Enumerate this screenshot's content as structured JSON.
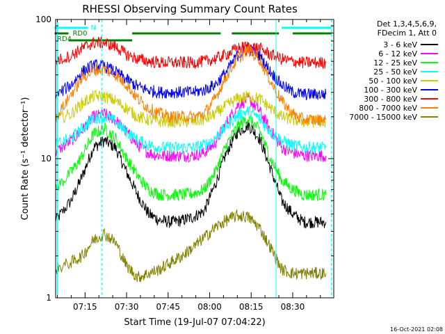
{
  "chart_data": {
    "type": "line",
    "title": "RHESSI Observing Summary Count Rates",
    "xlabel": "Start Time (19-Jul-07 07:04:22)",
    "ylabel": "Count Rate (s⁻¹ detector⁻¹)",
    "y_scale": "log",
    "ylim": [
      1,
      100
    ],
    "xlim": [
      "07:04:22",
      "08:44:50"
    ],
    "x_ticks": [
      "07:15",
      "07:30",
      "07:45",
      "08:00",
      "08:15",
      "08:30"
    ],
    "y_ticks": [
      "1",
      "10",
      "100"
    ],
    "legend_header": [
      "Det 1,3,4,5,6,9,",
      "FDecim 1, Att 0"
    ],
    "legend_placement": "right",
    "timestamp": "16-Oct-2021 02:08",
    "series": [
      {
        "name": "3 - 6 keV",
        "color": "#000000",
        "x": [
          "07:04",
          "07:10",
          "07:14",
          "07:18",
          "07:22",
          "07:26",
          "07:30",
          "07:34",
          "07:38",
          "07:42",
          "07:46",
          "07:50",
          "07:54",
          "07:58",
          "08:02",
          "08:06",
          "08:10",
          "08:14",
          "08:18",
          "08:22",
          "08:26",
          "08:30",
          "08:34",
          "08:38",
          "08:42"
        ],
        "y": [
          3.5,
          5,
          7.5,
          12,
          13.5,
          12,
          8,
          5.5,
          4,
          3.6,
          3.5,
          3.6,
          3.8,
          4.2,
          6.5,
          11,
          15.5,
          17.5,
          14,
          8.5,
          5,
          4,
          3.5,
          3.5,
          3.5
        ]
      },
      {
        "name": "6 - 12 keV",
        "color": "#ff00ff",
        "x": [
          "07:04",
          "07:10",
          "07:14",
          "07:18",
          "07:22",
          "07:26",
          "07:30",
          "07:34",
          "07:38",
          "07:42",
          "07:46",
          "07:50",
          "07:54",
          "07:58",
          "08:02",
          "08:06",
          "08:10",
          "08:14",
          "08:18",
          "08:22",
          "08:26",
          "08:30",
          "08:34",
          "08:38",
          "08:42"
        ],
        "y": [
          11,
          13.5,
          16,
          20,
          21,
          19,
          15.5,
          12.5,
          11,
          10.5,
          10.5,
          10.5,
          10.5,
          11,
          13,
          18,
          24,
          27,
          22,
          16,
          12,
          11,
          10.5,
          10.5,
          10.5
        ]
      },
      {
        "name": "12 - 25 keV",
        "color": "#00ff00",
        "x": [
          "07:04",
          "07:10",
          "07:14",
          "07:18",
          "07:22",
          "07:26",
          "07:30",
          "07:34",
          "07:38",
          "07:42",
          "07:46",
          "07:50",
          "07:54",
          "07:58",
          "08:02",
          "08:06",
          "08:10",
          "08:14",
          "08:18",
          "08:22",
          "08:26",
          "08:30",
          "08:34",
          "08:38",
          "08:42"
        ],
        "y": [
          6,
          8,
          10.5,
          15,
          16.5,
          14,
          10,
          7.5,
          6,
          5.5,
          5.5,
          5.5,
          5.6,
          6,
          8,
          12.5,
          17,
          19.5,
          16,
          10,
          7,
          6,
          5.5,
          5.5,
          5.5
        ]
      },
      {
        "name": "25 - 50 keV",
        "color": "#00ffff",
        "x": [
          "07:04",
          "07:10",
          "07:14",
          "07:18",
          "07:22",
          "07:26",
          "07:30",
          "07:34",
          "07:38",
          "07:42",
          "07:46",
          "07:50",
          "07:54",
          "07:58",
          "08:02",
          "08:06",
          "08:10",
          "08:14",
          "08:18",
          "08:22",
          "08:26",
          "08:30",
          "08:34",
          "08:38",
          "08:42"
        ],
        "y": [
          12.5,
          14,
          16.5,
          19.5,
          20,
          18.5,
          15.5,
          13.5,
          12.5,
          12,
          12,
          12,
          12,
          12.5,
          14,
          17,
          20.5,
          22,
          19.5,
          15.5,
          13.5,
          12.5,
          12,
          12,
          12
        ]
      },
      {
        "name": "50 - 100 keV",
        "color": "#cccc00",
        "x": [
          "07:04",
          "07:10",
          "07:14",
          "07:18",
          "07:22",
          "07:26",
          "07:30",
          "07:34",
          "07:38",
          "07:42",
          "07:46",
          "07:50",
          "07:54",
          "07:58",
          "08:02",
          "08:06",
          "08:10",
          "08:14",
          "08:18",
          "08:22",
          "08:26",
          "08:30",
          "08:34",
          "08:38",
          "08:42"
        ],
        "y": [
          19,
          21,
          25,
          28,
          28,
          26,
          23,
          20,
          19,
          18.5,
          18.5,
          18.5,
          18.5,
          19,
          21,
          24,
          27,
          28,
          27,
          23,
          20,
          19,
          18.5,
          18.5,
          18.5
        ]
      },
      {
        "name": "100 - 300 keV",
        "color": "#0000ff",
        "x": [
          "07:04",
          "07:10",
          "07:14",
          "07:18",
          "07:22",
          "07:26",
          "07:30",
          "07:34",
          "07:38",
          "07:42",
          "07:46",
          "07:50",
          "07:54",
          "07:58",
          "08:02",
          "08:06",
          "08:10",
          "08:14",
          "08:18",
          "08:22",
          "08:26",
          "08:30",
          "08:34",
          "08:38",
          "08:42"
        ],
        "y": [
          28,
          34,
          42,
          47,
          46,
          42,
          37,
          33,
          31,
          30,
          30,
          30,
          30,
          31,
          34,
          42,
          55,
          62,
          55,
          42,
          34,
          30,
          29,
          29,
          29
        ]
      },
      {
        "name": "300 - 800 keV",
        "color": "#ff0000",
        "x": [
          "07:04",
          "07:10",
          "07:14",
          "07:18",
          "07:22",
          "07:26",
          "07:30",
          "07:34",
          "07:38",
          "07:42",
          "07:46",
          "07:50",
          "07:54",
          "07:58",
          "08:02",
          "08:06",
          "08:10",
          "08:14",
          "08:18",
          "08:22",
          "08:26",
          "08:30",
          "08:34",
          "08:38",
          "08:42"
        ],
        "y": [
          50,
          55,
          62,
          68,
          68,
          64,
          56,
          52,
          50,
          49,
          49,
          49,
          49,
          50,
          52,
          56,
          62,
          64,
          62,
          56,
          52,
          50,
          49,
          49,
          49
        ]
      },
      {
        "name": "800 - 7000 keV",
        "color": "#ff8000",
        "x": [
          "07:04",
          "07:10",
          "07:14",
          "07:18",
          "07:22",
          "07:26",
          "07:30",
          "07:34",
          "07:38",
          "07:42",
          "07:46",
          "07:50",
          "07:54",
          "07:58",
          "08:02",
          "08:06",
          "08:10",
          "08:14",
          "08:18",
          "08:22",
          "08:26",
          "08:30",
          "08:34",
          "08:38",
          "08:42"
        ],
        "y": [
          19,
          29,
          38,
          43,
          44,
          40,
          34,
          27,
          23,
          21,
          20,
          20,
          20,
          21,
          27,
          39,
          52,
          60,
          52,
          36,
          26,
          21,
          19,
          19,
          19
        ]
      },
      {
        "name": "7000 - 15000 keV",
        "color": "#808000",
        "x": [
          "07:04",
          "07:10",
          "07:14",
          "07:18",
          "07:22",
          "07:26",
          "07:30",
          "07:34",
          "07:38",
          "07:42",
          "07:46",
          "07:50",
          "07:54",
          "07:58",
          "08:02",
          "08:06",
          "08:10",
          "08:14",
          "08:18",
          "08:22",
          "08:26",
          "08:30",
          "08:34",
          "08:38",
          "08:42"
        ],
        "y": [
          1.6,
          1.8,
          2,
          2.6,
          2.9,
          2.5,
          1.7,
          1.4,
          1.5,
          1.6,
          1.8,
          2,
          2.3,
          2.7,
          3.2,
          3.6,
          3.9,
          3.8,
          3.2,
          2.3,
          1.6,
          1.5,
          1.5,
          1.5,
          1.5
        ]
      }
    ],
    "annotations": [
      {
        "label": "N",
        "color": "#00ffff",
        "row": "top",
        "segments": [
          [
            "07:04",
            "07:16"
          ],
          [
            "08:26",
            "08:44"
          ]
        ]
      },
      {
        "label": "RD0",
        "color": "#008000",
        "row": "middle",
        "segments": [
          [
            "07:04",
            "07:09"
          ],
          [
            "07:32",
            "08:04"
          ],
          [
            "08:08",
            "08:25"
          ],
          [
            "08:30",
            "08:44"
          ]
        ]
      },
      {
        "label": "RD4",
        "color": "#008000",
        "row": "lower",
        "segments": [
          [
            "07:09",
            "07:32"
          ]
        ]
      }
    ],
    "vertical_lines": [
      {
        "time": "07:05",
        "color": "#00ffff",
        "style": "solid"
      },
      {
        "time": "07:21",
        "color": "#00ffff",
        "style": "dashed"
      },
      {
        "time": "08:24",
        "color": "#00ffff",
        "style": "solid"
      },
      {
        "time": "08:44",
        "color": "#00ffff",
        "style": "dashed"
      }
    ]
  }
}
